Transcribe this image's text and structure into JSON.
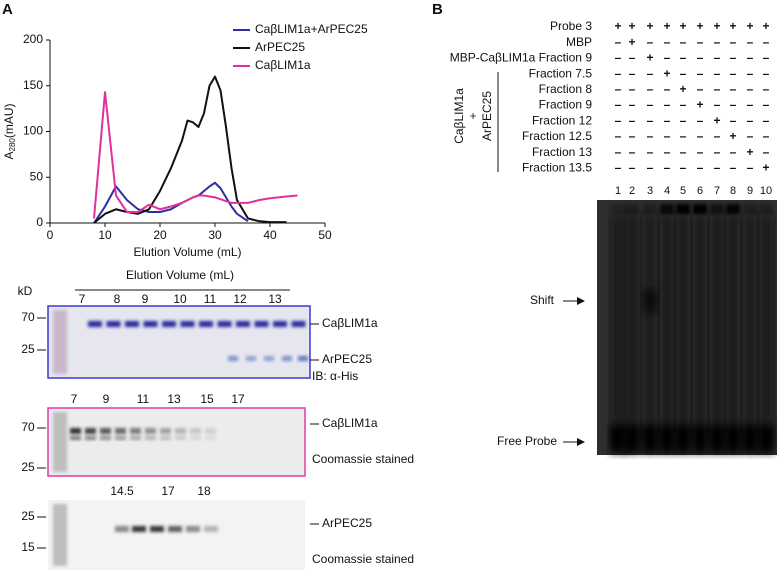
{
  "panel_labels": [
    "A",
    "B"
  ],
  "chart_data": {
    "type": "line",
    "ylabel_parts": [
      "A",
      "280",
      "(mAU)"
    ],
    "xlabel": "Elution Volume (mL)",
    "x": [
      8,
      10,
      12,
      14,
      16,
      18,
      20,
      22,
      24,
      25,
      26,
      27,
      28,
      29,
      30,
      31,
      32,
      33,
      34,
      36,
      38,
      40,
      43,
      45
    ],
    "series": [
      {
        "name": "CaβLIM1a+ArPEC25",
        "color": "#2b2fa6",
        "values": [
          0,
          18,
          40,
          25,
          15,
          12,
          12,
          15,
          22,
          25,
          28,
          30,
          35,
          40,
          44,
          38,
          28,
          18,
          10,
          2,
          null,
          null,
          null,
          null
        ]
      },
      {
        "name": "ArPEC25",
        "color": "#111111",
        "values": [
          0,
          10,
          15,
          12,
          10,
          15,
          35,
          60,
          90,
          112,
          110,
          105,
          120,
          150,
          160,
          145,
          105,
          60,
          25,
          5,
          2,
          1,
          1,
          null
        ]
      },
      {
        "name": "CaβLIM1a",
        "color": "#e0309a",
        "values": [
          5,
          143,
          30,
          12,
          12,
          20,
          15,
          18,
          22,
          25,
          28,
          30,
          30,
          29,
          28,
          26,
          24,
          22,
          22,
          22,
          25,
          27,
          29,
          30
        ]
      }
    ],
    "xlim": [
      0,
      50
    ],
    "xticks": [
      0,
      10,
      20,
      30,
      40,
      50
    ],
    "ylim": [
      0,
      200
    ],
    "yticks": [
      0,
      50,
      100,
      150,
      200
    ]
  },
  "blots": [
    {
      "top_label": "Elution Volume (mL)",
      "kd_label": "kD",
      "lanes": [
        "7",
        "8",
        "9",
        "10",
        "11",
        "12",
        "13"
      ],
      "markers": [
        "70",
        "25"
      ],
      "right_labels": [
        "CaβLIM1a",
        "ArPEC25",
        "IB: α-His"
      ]
    },
    {
      "lanes": [
        "7",
        "9",
        "11",
        "13",
        "15",
        "17"
      ],
      "markers": [
        "70",
        "25"
      ],
      "right_labels": [
        "CaβLIM1a",
        "Coomassie stained"
      ]
    },
    {
      "lanes": [
        "14.5",
        "17",
        "18"
      ],
      "markers": [
        "25",
        "15"
      ],
      "right_labels": [
        "ArPEC25",
        "Coomassie stained"
      ]
    }
  ],
  "emsa": {
    "rows": [
      {
        "label": "Probe 3",
        "cells": [
          "+",
          "+",
          "+",
          "+",
          "+",
          "+",
          "+",
          "+",
          "+",
          "+"
        ]
      },
      {
        "label": "MBP",
        "cells": [
          "–",
          "+",
          "–",
          "–",
          "–",
          "–",
          "–",
          "–",
          "–",
          "–"
        ]
      },
      {
        "label": "MBP-CaβLIM1a Fraction 9",
        "cells": [
          "–",
          "–",
          "+",
          "–",
          "–",
          "–",
          "–",
          "–",
          "–",
          "–"
        ]
      },
      {
        "label": "Fraction 7.5",
        "cells": [
          "–",
          "–",
          "–",
          "+",
          "–",
          "–",
          "–",
          "–",
          "–",
          "–"
        ]
      },
      {
        "label": "Fraction 8",
        "cells": [
          "–",
          "–",
          "–",
          "–",
          "+",
          "–",
          "–",
          "–",
          "–",
          "–"
        ]
      },
      {
        "label": "Fraction 9",
        "cells": [
          "–",
          "–",
          "–",
          "–",
          "–",
          "+",
          "–",
          "–",
          "–",
          "–"
        ]
      },
      {
        "label": "Fraction 12",
        "cells": [
          "–",
          "–",
          "–",
          "–",
          "–",
          "–",
          "+",
          "–",
          "–",
          "–"
        ]
      },
      {
        "label": "Fraction 12.5",
        "cells": [
          "–",
          "–",
          "–",
          "–",
          "–",
          "–",
          "–",
          "+",
          "–",
          "–"
        ]
      },
      {
        "label": "Fraction 13",
        "cells": [
          "–",
          "–",
          "–",
          "–",
          "–",
          "–",
          "–",
          "–",
          "+",
          "–"
        ]
      },
      {
        "label": "Fraction 13.5",
        "cells": [
          "–",
          "–",
          "–",
          "–",
          "–",
          "–",
          "–",
          "–",
          "–",
          "+"
        ]
      }
    ],
    "group_label": [
      "CaβLIM1a",
      "+",
      "ArPEC25"
    ],
    "lanes": [
      "1",
      "2",
      "3",
      "4",
      "5",
      "6",
      "7",
      "8",
      "9",
      "10"
    ],
    "gel_labels": [
      "Shift",
      "Free Probe"
    ]
  }
}
